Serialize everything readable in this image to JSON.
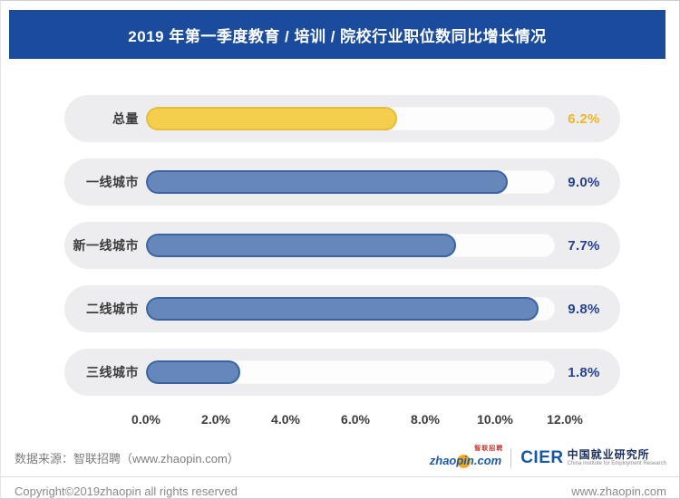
{
  "header": {
    "title": "2019 年第一季度教育 / 培训 / 院校行业职位数同比增长情况"
  },
  "chart_data": {
    "type": "bar",
    "orientation": "horizontal",
    "title": "2019 年第一季度教育 / 培训 / 院校行业职位数同比增长情况",
    "categories": [
      "总量",
      "一线城市",
      "新一线城市",
      "二线城市",
      "三线城市"
    ],
    "values": [
      6.2,
      9.0,
      7.7,
      9.8,
      1.8
    ],
    "value_labels": [
      "6.2%",
      "9.0%",
      "7.7%",
      "9.8%",
      "1.8%"
    ],
    "bar_colors": [
      "#F6CE4E",
      "#6687B9",
      "#6687B9",
      "#6687B9",
      "#6687B9"
    ],
    "bar_border_colors": [
      "#E8BC3A",
      "#3A63A4",
      "#3A63A4",
      "#3A63A4",
      "#3A63A4"
    ],
    "value_text_colors": [
      "#EDB52A",
      "#24418F",
      "#24418F",
      "#24418F",
      "#24418F"
    ],
    "xlabel": "",
    "ylabel": "",
    "xlim": [
      0,
      12
    ],
    "x_ticks": [
      "0.0%",
      "2.0%",
      "4.0%",
      "6.0%",
      "8.0%",
      "10.0%",
      "12.0%"
    ],
    "grid": false,
    "legend": false
  },
  "footer": {
    "source": "数据来源：智联招聘（www.zhaopin.com）",
    "copyright": "Copyright©2019zhaopin all rights reserved",
    "website": "www.zhaopin.com",
    "logo_zhaopin_text": "zhaopin.com",
    "logo_zhaopin_tag": "智联招聘",
    "logo_cier": "CIER",
    "logo_cier_cn": "中国就业研究所",
    "logo_cier_en": "China Institute for Employment Research"
  },
  "colors": {
    "header_bg": "#1B4B9C",
    "row_bg": "#EDEDEF",
    "track_bg": "#FDFDFE",
    "accent_yellow": "#F6CE4E",
    "accent_blue": "#6687B9",
    "value_blue": "#24418F",
    "value_gold": "#EDB52A"
  }
}
